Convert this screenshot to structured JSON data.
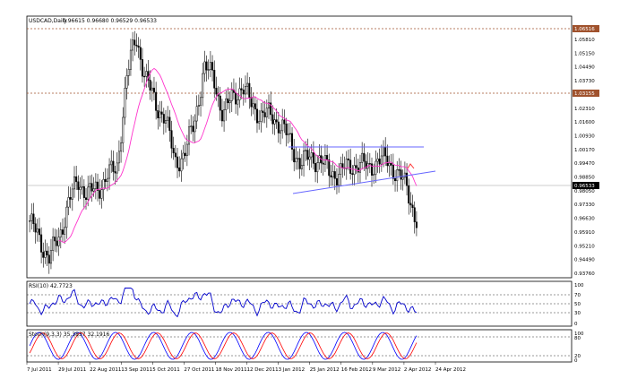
{
  "main_panel": {
    "symbol": "USDCAD,Daily",
    "ohlc": "0.96615 0.96680 0.96529 0.96533",
    "price_ticks": [
      "1.05810",
      "1.05150",
      "1.04490",
      "1.03730",
      "1.02950",
      "1.02310",
      "1.01600",
      "1.00930",
      "1.00170",
      "0.99470",
      "0.98850",
      "0.98050",
      "0.97330",
      "0.96630",
      "0.95910",
      "0.95210",
      "0.94490",
      "0.93760"
    ],
    "hl_top_label": "1.06516",
    "hl_mid_label": "1.03155",
    "current_price_label": "0.96533"
  },
  "rsi_panel": {
    "title": "RSI(10) 42.7723",
    "levels": [
      "100",
      "70",
      "50",
      "30",
      "0"
    ]
  },
  "stoch_panel": {
    "title": "Stoch(9,3,3) 35.3837 32.1916",
    "levels": [
      "100",
      "80",
      "20",
      "0"
    ]
  },
  "x_axis": {
    "dates": [
      "7 Jul 2011",
      "29 Jul 2011",
      "22 Aug 2011",
      "13 Sep 2011",
      "5 Oct 2011",
      "27 Oct 2011",
      "18 Nov 2011",
      "12 Dec 2011",
      "3 Jan 2012",
      "25 Jan 2012",
      "16 Feb 2012",
      "9 Mar 2012",
      "2 Apr 2012",
      "24 Apr 2012"
    ]
  },
  "colors": {
    "candles": "#000000",
    "ma": "#ff33cc",
    "trendline": "#6666ff",
    "rsi_line": "#0000cc",
    "stoch_main": "#0000ff",
    "stoch_signal": "#ff0000",
    "hline": "#a0522d",
    "label_bg": "#a0522d"
  },
  "chart_data": {
    "type": "candlestick",
    "symbol": "USDCAD",
    "timeframe": "Daily",
    "ohlc_last": {
      "open": 0.96615,
      "high": 0.9668,
      "low": 0.96529,
      "close": 0.96533
    },
    "close_path": [
      [
        "7 Jul 2011",
        0.965
      ],
      [
        "15 Jul 2011",
        0.955
      ],
      [
        "22 Jul 2011",
        0.946
      ],
      [
        "29 Jul 2011",
        0.955
      ],
      [
        "5 Aug 2011",
        0.975
      ],
      [
        "12 Aug 2011",
        0.985
      ],
      [
        "22 Aug 2011",
        0.98
      ],
      [
        "31 Aug 2011",
        0.98
      ],
      [
        "7 Sep 2011",
        0.99
      ],
      [
        "13 Sep 2011",
        0.99
      ],
      [
        "22 Sep 2011",
        1.04
      ],
      [
        "28 Sep 2011",
        1.06
      ],
      [
        "5 Oct 2011",
        1.04
      ],
      [
        "12 Oct 2011",
        1.025
      ],
      [
        "19 Oct 2011",
        1.02
      ],
      [
        "27 Oct 2011",
        0.995
      ],
      [
        "4 Nov 2011",
        1.0
      ],
      [
        "11 Nov 2011",
        1.015
      ],
      [
        "18 Nov 2011",
        1.045
      ],
      [
        "25 Nov 2011",
        1.04
      ],
      [
        "2 Dec 2011",
        1.02
      ],
      [
        "12 Dec 2011",
        1.03
      ],
      [
        "19 Dec 2011",
        1.035
      ],
      [
        "26 Dec 2011",
        1.025
      ],
      [
        "3 Jan 2012",
        1.02
      ],
      [
        "10 Jan 2012",
        1.02
      ],
      [
        "17 Jan 2012",
        1.015
      ],
      [
        "25 Jan 2012",
        1.005
      ],
      [
        "1 Feb 2012",
        0.995
      ],
      [
        "8 Feb 2012",
        0.998
      ],
      [
        "16 Feb 2012",
        0.997
      ],
      [
        "23 Feb 2012",
        0.99
      ],
      [
        "1 Mar 2012",
        0.99
      ],
      [
        "9 Mar 2012",
        0.993
      ],
      [
        "16 Mar 2012",
        0.995
      ],
      [
        "23 Mar 2012",
        0.992
      ],
      [
        "2 Apr 2012",
        0.997
      ],
      [
        "9 Apr 2012",
        0.996
      ],
      [
        "16 Apr 2012",
        0.99
      ],
      [
        "24 Apr 2012",
        0.982
      ],
      [
        "30 Apr 2012",
        0.9653
      ]
    ],
    "horizontal_levels": [
      1.06516,
      1.03155
    ],
    "resistance_level": 1.0085,
    "support_trendline": [
      [
        "25 Jan 2012",
        0.9805
      ],
      [
        "30 Apr 2012",
        0.9915
      ]
    ],
    "indicators": [
      "RSI(10)",
      "Stoch(9,3,3)"
    ],
    "rsi_last": 42.7723,
    "stoch_last": [
      35.3837,
      32.1916
    ]
  }
}
